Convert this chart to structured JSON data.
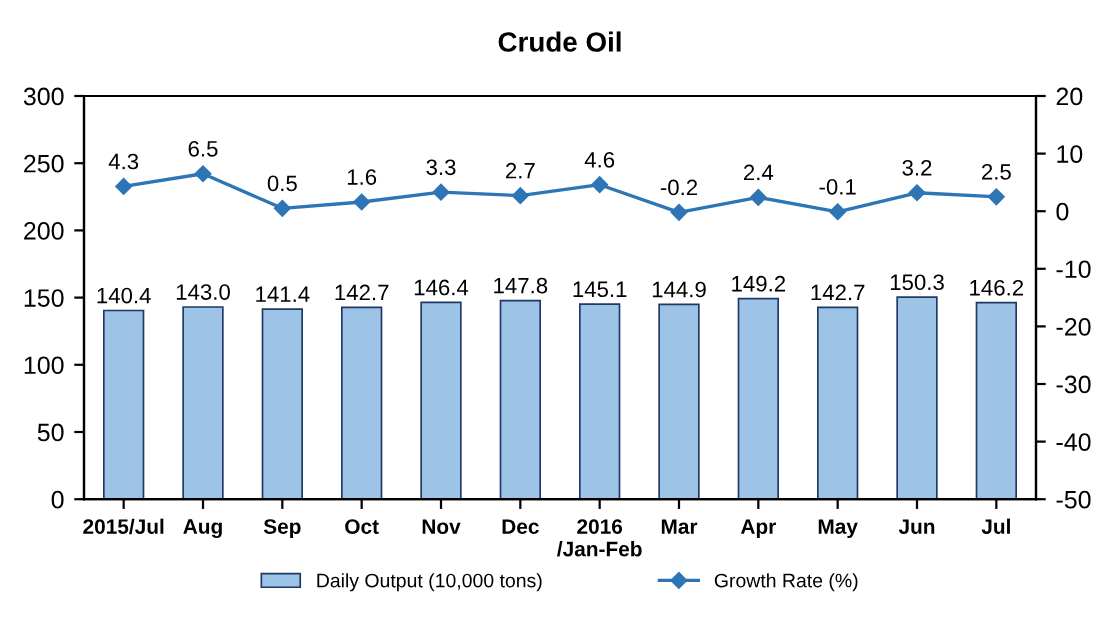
{
  "chart_data": {
    "type": "bar",
    "title": "Crude Oil",
    "categories": [
      "2015/Jul",
      "Aug",
      "Sep",
      "Oct",
      "Nov",
      "Dec",
      "2016\n/Jan-Feb",
      "Mar",
      "Apr",
      "May",
      "Jun",
      "Jul"
    ],
    "series": [
      {
        "name": "Daily Output (10,000 tons)",
        "color": "#9dc3e6",
        "values": [
          140.4,
          143.0,
          141.4,
          142.7,
          146.4,
          147.8,
          145.1,
          144.9,
          149.2,
          142.7,
          150.3,
          146.2
        ],
        "value_labels": [
          "140.4",
          "143.0",
          "141.4",
          "142.7",
          "146.4",
          "147.8",
          "145.1",
          "144.9",
          "149.2",
          "142.7",
          "150.3",
          "146.2"
        ]
      },
      {
        "name": "Growth Rate (%)",
        "type": "line",
        "axis": "y2",
        "color": "#2e75b6",
        "marker": "diamond",
        "values": [
          4.3,
          6.5,
          0.5,
          1.6,
          3.3,
          2.7,
          4.6,
          -0.2,
          2.4,
          -0.1,
          3.2,
          2.5
        ]
      }
    ],
    "ylim": [
      0,
      300
    ],
    "yticks": [
      0,
      50,
      100,
      150,
      200,
      250,
      300
    ],
    "y2lim": [
      -50,
      20
    ],
    "y2ticks": [
      -50,
      -40,
      -30,
      -20,
      -10,
      0,
      10,
      20
    ],
    "data_labels": true,
    "legend": "bottom",
    "grid": false
  }
}
